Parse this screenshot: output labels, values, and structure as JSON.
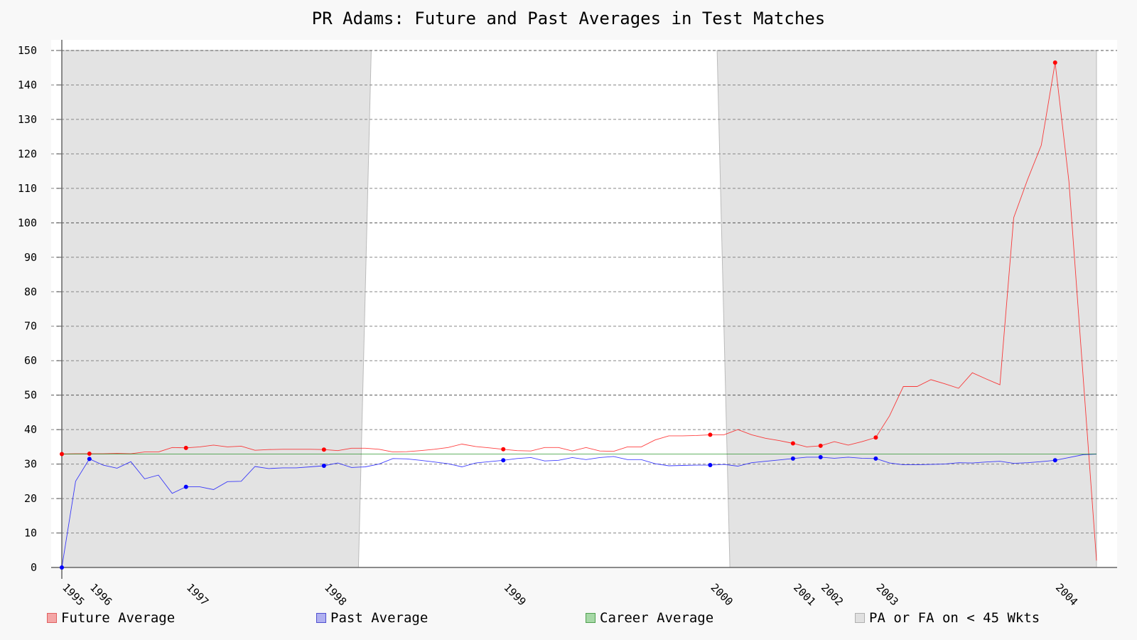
{
  "chart_data": {
    "type": "line",
    "title": "PR Adams: Future and Past Averages in Test Matches",
    "ylim": [
      0,
      150
    ],
    "yticks": [
      0,
      10,
      20,
      30,
      40,
      50,
      60,
      70,
      80,
      90,
      100,
      110,
      120,
      130,
      140,
      150
    ],
    "xlim": [
      0,
      75
    ],
    "xticks": [
      {
        "label": "1995",
        "x": 0
      },
      {
        "label": "1996",
        "x": 2
      },
      {
        "label": "1997",
        "x": 9
      },
      {
        "label": "1998",
        "x": 19
      },
      {
        "label": "1999",
        "x": 32
      },
      {
        "label": "2000",
        "x": 47
      },
      {
        "label": "2001",
        "x": 53
      },
      {
        "label": "2002",
        "x": 55
      },
      {
        "label": "2003",
        "x": 59
      },
      {
        "label": "2004",
        "x": 72
      }
    ],
    "grid": true,
    "legend_position": "bottom",
    "career_average": 32.9,
    "shaded_regions": [
      {
        "name": "PA or FA on < 45 Wkts",
        "start": 0,
        "end": 21.5
      },
      {
        "name": "PA or FA on < 45 Wkts",
        "start": 47.5,
        "end": 75
      }
    ],
    "series": [
      {
        "name": "Future Average",
        "color": "#ff0000",
        "values": [
          32.9,
          33.0,
          33.0,
          33.0,
          33.1,
          33.0,
          33.5,
          33.5,
          34.8,
          34.7,
          35.0,
          35.5,
          35.0,
          35.2,
          34.0,
          34.2,
          34.3,
          34.3,
          34.3,
          34.2,
          33.9,
          34.6,
          34.6,
          34.3,
          33.5,
          33.6,
          33.9,
          34.3,
          34.8,
          35.8,
          35.1,
          34.7,
          34.3,
          33.9,
          33.8,
          34.8,
          34.8,
          33.8,
          34.8,
          33.8,
          33.7,
          35.0,
          35.0,
          37.0,
          38.2,
          38.2,
          38.3,
          38.5,
          38.5,
          40.0,
          38.5,
          37.5,
          36.8,
          36.0,
          35.0,
          35.3,
          36.5,
          35.5,
          36.5,
          37.7,
          44.0,
          52.5,
          52.5,
          54.5,
          53.3,
          52.0,
          56.5,
          54.7,
          53.0,
          101.5,
          112.5,
          122.5,
          146.5,
          112.0,
          57.0,
          2.0
        ],
        "markers": [
          0,
          2,
          9,
          19,
          32,
          47,
          53,
          55,
          59,
          72
        ]
      },
      {
        "name": "Past Average",
        "color": "#0000ff",
        "values": [
          0.0,
          25.0,
          31.5,
          29.7,
          28.8,
          30.7,
          25.7,
          26.8,
          21.5,
          23.4,
          23.4,
          22.6,
          24.9,
          25.0,
          29.3,
          28.7,
          28.9,
          28.9,
          29.2,
          29.5,
          30.3,
          29.0,
          29.2,
          30.0,
          31.6,
          31.5,
          31.1,
          30.6,
          30.1,
          29.2,
          30.3,
          30.7,
          31.1,
          31.6,
          31.9,
          30.9,
          31.1,
          31.9,
          31.3,
          31.9,
          32.2,
          31.3,
          31.3,
          30.1,
          29.5,
          29.6,
          29.7,
          29.7,
          29.9,
          29.4,
          30.4,
          30.8,
          31.2,
          31.6,
          32.0,
          32.0,
          31.7,
          32.0,
          31.7,
          31.6,
          30.3,
          29.8,
          29.8,
          29.9,
          30.0,
          30.4,
          30.3,
          30.6,
          30.8,
          30.2,
          30.4,
          30.7,
          31.1,
          31.9,
          32.7,
          32.9
        ],
        "markers": [
          0,
          2,
          9,
          19,
          32,
          47,
          53,
          55,
          59,
          72
        ]
      },
      {
        "name": "Career Average",
        "color": "#008000"
      }
    ],
    "legend": [
      {
        "label": "Future Average",
        "fill": "#f4a6a6",
        "stroke": "#e06060"
      },
      {
        "label": "Past Average",
        "fill": "#b0b0f0",
        "stroke": "#5050d0"
      },
      {
        "label": "Career Average",
        "fill": "#a6d8a6",
        "stroke": "#50a050"
      },
      {
        "label": "PA or FA on < 45 Wkts",
        "fill": "#e0e0e0",
        "stroke": "#b0b0b0"
      }
    ]
  }
}
